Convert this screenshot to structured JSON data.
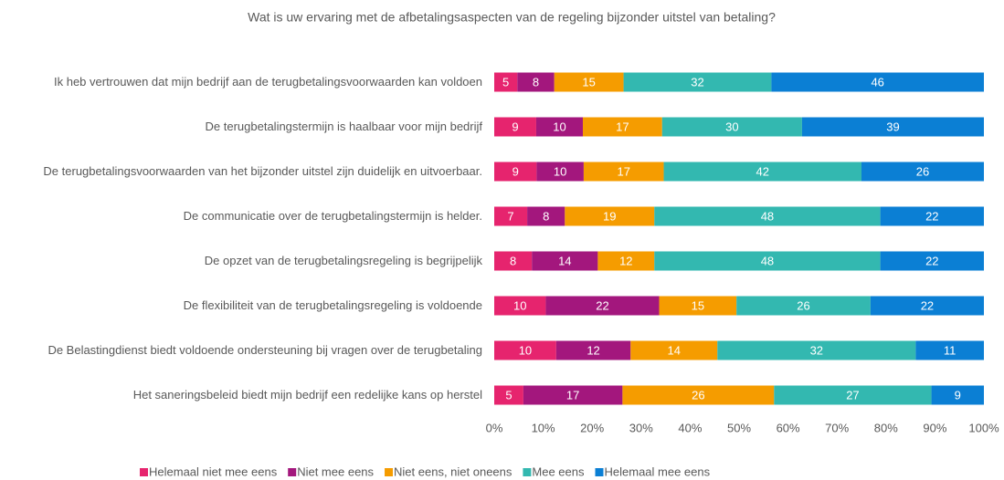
{
  "chart_data": {
    "type": "bar",
    "orientation": "horizontal",
    "stacked": "percent",
    "title": "Wat is uw ervaring met de afbetalingsaspecten van de regeling bijzonder uitstel van betaling?",
    "categories": [
      "Ik heb vertrouwen dat mijn bedrijf aan de terugbetalingsvoorwaarden kan voldoen",
      "De terugbetalingstermijn is haalbaar voor mijn bedrijf",
      "De terugbetalingsvoorwaarden van het bijzonder uitstel zijn duidelijk en uitvoerbaar.",
      "De communicatie over de terugbetalingstermijn is helder.",
      "De opzet van de terugbetalingsregeling is begrijpelijk",
      "De flexibiliteit van de terugbetalingsregeling is voldoende",
      "De Belastingdienst biedt voldoende ondersteuning bij vragen over de terugbetaling",
      "Het saneringsbeleid biedt mijn bedrijf een redelijke kans op herstel"
    ],
    "series": [
      {
        "name": "Helemaal niet mee eens",
        "color": "#e6246e",
        "values": [
          5,
          9,
          9,
          7,
          8,
          10,
          10,
          5
        ]
      },
      {
        "name": "Niet mee eens",
        "color": "#a3177d",
        "values": [
          8,
          10,
          10,
          8,
          14,
          22,
          12,
          17
        ]
      },
      {
        "name": "Niet eens, niet oneens",
        "color": "#f59c00",
        "values": [
          15,
          17,
          17,
          19,
          12,
          15,
          14,
          26
        ]
      },
      {
        "name": "Mee eens",
        "color": "#33b8b0",
        "values": [
          32,
          30,
          42,
          48,
          48,
          26,
          32,
          27
        ]
      },
      {
        "name": "Helemaal mee eens",
        "color": "#0b7fd4",
        "values": [
          46,
          39,
          26,
          22,
          22,
          22,
          11,
          9
        ]
      }
    ],
    "xlim": [
      0,
      100
    ],
    "xticks": [
      {
        "value": 0,
        "label": "0%"
      },
      {
        "value": 10,
        "label": "10%"
      },
      {
        "value": 20,
        "label": "20%"
      },
      {
        "value": 30,
        "label": "30%"
      },
      {
        "value": 40,
        "label": "40%"
      },
      {
        "value": 50,
        "label": "50%"
      },
      {
        "value": 60,
        "label": "60%"
      },
      {
        "value": 70,
        "label": "70%"
      },
      {
        "value": 80,
        "label": "80%"
      },
      {
        "value": 90,
        "label": "90%"
      },
      {
        "value": 100,
        "label": "100%"
      }
    ],
    "legend": "bottom"
  }
}
